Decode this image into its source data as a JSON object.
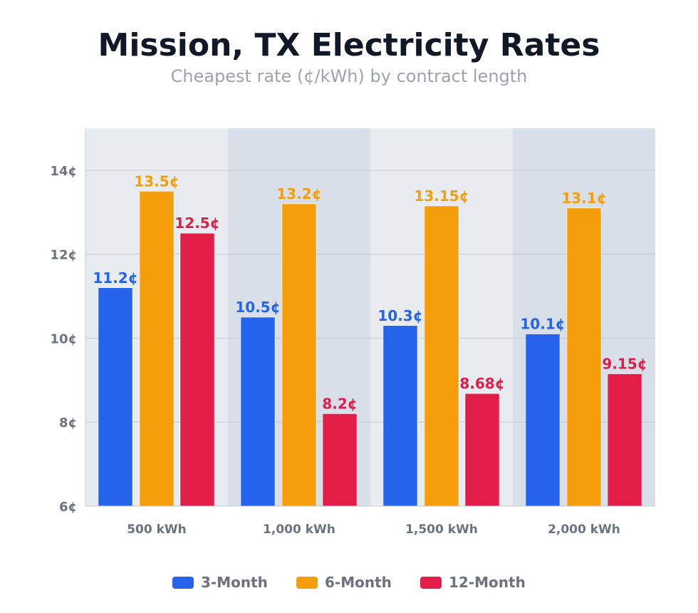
{
  "chart_data": {
    "type": "bar",
    "title": "Mission, TX Electricity Rates",
    "subtitle": "Cheapest rate (¢/kWh) by contract length",
    "categories": [
      "500 kWh",
      "1,000 kWh",
      "1,500 kWh",
      "2,000 kWh"
    ],
    "series": [
      {
        "name": "3-Month",
        "color": "#2563eb",
        "values": [
          11.2,
          10.5,
          10.3,
          10.1
        ],
        "labels": [
          "11.2¢",
          "10.5¢",
          "10.3¢",
          "10.1¢"
        ]
      },
      {
        "name": "6-Month",
        "color": "#f59e0b",
        "values": [
          13.5,
          13.2,
          13.15,
          13.1
        ],
        "labels": [
          "13.5¢",
          "13.2¢",
          "13.15¢",
          "13.1¢"
        ]
      },
      {
        "name": "12-Month",
        "color": "#e11d48",
        "values": [
          12.5,
          8.2,
          8.68,
          9.15
        ],
        "labels": [
          "12.5¢",
          "8.2¢",
          "8.68¢",
          "9.15¢"
        ]
      }
    ],
    "yticks": [
      6,
      8,
      10,
      12,
      14
    ],
    "ytick_labels": [
      "6¢",
      "8¢",
      "10¢",
      "12¢",
      "14¢"
    ],
    "ylim": [
      6,
      15
    ],
    "xlabel": "",
    "ylabel": "",
    "grid": true,
    "legend": "bottom",
    "band_colors": [
      "#e8ebf0",
      "#d9dfe8"
    ]
  }
}
